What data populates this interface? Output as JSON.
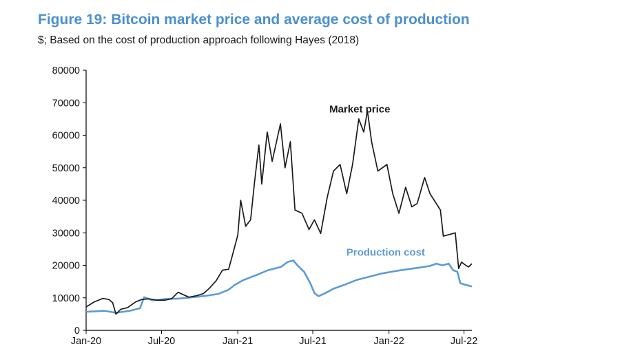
{
  "title": "Figure 19: Bitcoin market price and average cost of production",
  "subtitle": "$; Based on the cost of production approach following Hayes (2018)",
  "colors": {
    "title": "#4a90cf",
    "market_price": "#1a1a1a",
    "production_cost": "#5b9bd5",
    "axis": "#000000"
  },
  "chart_data": {
    "type": "line",
    "title": "Figure 19: Bitcoin market price and average cost of production",
    "subtitle": "$; Based on the cost of production approach following Hayes (2018)",
    "xlabel": "",
    "ylabel": "",
    "ylim": [
      0,
      80000
    ],
    "xlim": [
      "2020-01-01",
      "2022-07-20"
    ],
    "grid": false,
    "y_ticks": [
      "0",
      "10000",
      "20000",
      "30000",
      "40000",
      "50000",
      "60000",
      "70000",
      "80000"
    ],
    "x_ticks": [
      {
        "label": "Jan-20",
        "date": "2020-01-01"
      },
      {
        "label": "Jul-20",
        "date": "2020-07-01"
      },
      {
        "label": "Jan-21",
        "date": "2021-01-01"
      },
      {
        "label": "Jul-21",
        "date": "2021-07-01"
      },
      {
        "label": "Jan-22",
        "date": "2022-01-01"
      },
      {
        "label": "Jul-22",
        "date": "2022-07-01"
      }
    ],
    "series": [
      {
        "name": "Market price",
        "color": "#1a1a1a",
        "points": [
          [
            "2020-01-01",
            7200
          ],
          [
            "2020-01-20",
            8700
          ],
          [
            "2020-02-10",
            9800
          ],
          [
            "2020-02-25",
            9500
          ],
          [
            "2020-03-05",
            8500
          ],
          [
            "2020-03-13",
            5000
          ],
          [
            "2020-03-25",
            6500
          ],
          [
            "2020-04-10",
            7000
          ],
          [
            "2020-04-30",
            8800
          ],
          [
            "2020-05-15",
            9500
          ],
          [
            "2020-06-01",
            9700
          ],
          [
            "2020-06-20",
            9300
          ],
          [
            "2020-07-10",
            9300
          ],
          [
            "2020-07-25",
            9700
          ],
          [
            "2020-08-10",
            11700
          ],
          [
            "2020-09-05",
            10200
          ],
          [
            "2020-09-25",
            10700
          ],
          [
            "2020-10-10",
            11300
          ],
          [
            "2020-10-25",
            13000
          ],
          [
            "2020-11-10",
            15300
          ],
          [
            "2020-11-25",
            18500
          ],
          [
            "2020-12-10",
            18800
          ],
          [
            "2020-12-20",
            23500
          ],
          [
            "2021-01-01",
            29300
          ],
          [
            "2021-01-08",
            40000
          ],
          [
            "2021-01-20",
            32000
          ],
          [
            "2021-02-01",
            34000
          ],
          [
            "2021-02-10",
            45000
          ],
          [
            "2021-02-21",
            57000
          ],
          [
            "2021-02-28",
            45000
          ],
          [
            "2021-03-13",
            61000
          ],
          [
            "2021-03-25",
            52000
          ],
          [
            "2021-04-14",
            63500
          ],
          [
            "2021-04-25",
            50000
          ],
          [
            "2021-05-08",
            58000
          ],
          [
            "2021-05-19",
            37000
          ],
          [
            "2021-06-05",
            36000
          ],
          [
            "2021-06-22",
            31000
          ],
          [
            "2021-07-05",
            34000
          ],
          [
            "2021-07-20",
            29800
          ],
          [
            "2021-08-05",
            41000
          ],
          [
            "2021-08-20",
            49000
          ],
          [
            "2021-09-05",
            51000
          ],
          [
            "2021-09-21",
            42000
          ],
          [
            "2021-10-05",
            51000
          ],
          [
            "2021-10-20",
            65000
          ],
          [
            "2021-11-01",
            61000
          ],
          [
            "2021-11-10",
            67500
          ],
          [
            "2021-11-20",
            58000
          ],
          [
            "2021-12-05",
            49000
          ],
          [
            "2021-12-27",
            51000
          ],
          [
            "2022-01-10",
            42000
          ],
          [
            "2022-01-25",
            36000
          ],
          [
            "2022-02-10",
            44000
          ],
          [
            "2022-02-25",
            38000
          ],
          [
            "2022-03-10",
            39000
          ],
          [
            "2022-03-28",
            47000
          ],
          [
            "2022-04-10",
            42000
          ],
          [
            "2022-04-25",
            39000
          ],
          [
            "2022-05-05",
            37000
          ],
          [
            "2022-05-12",
            29000
          ],
          [
            "2022-05-28",
            29500
          ],
          [
            "2022-06-10",
            30000
          ],
          [
            "2022-06-18",
            19000
          ],
          [
            "2022-06-25",
            21000
          ],
          [
            "2022-07-05",
            20000
          ],
          [
            "2022-07-12",
            19500
          ],
          [
            "2022-07-20",
            20500
          ]
        ]
      },
      {
        "name": "Production cost",
        "color": "#5b9bd5",
        "points": [
          [
            "2020-01-01",
            5700
          ],
          [
            "2020-02-15",
            6000
          ],
          [
            "2020-03-13",
            5400
          ],
          [
            "2020-04-15",
            6000
          ],
          [
            "2020-05-10",
            6800
          ],
          [
            "2020-05-20",
            10200
          ],
          [
            "2020-06-10",
            9200
          ],
          [
            "2020-07-10",
            9600
          ],
          [
            "2020-08-15",
            9800
          ],
          [
            "2020-09-15",
            10200
          ],
          [
            "2020-10-15",
            10600
          ],
          [
            "2020-11-15",
            11200
          ],
          [
            "2020-12-10",
            12500
          ],
          [
            "2020-12-25",
            14000
          ],
          [
            "2021-01-15",
            15500
          ],
          [
            "2021-02-15",
            17000
          ],
          [
            "2021-03-15",
            18500
          ],
          [
            "2021-04-15",
            19500
          ],
          [
            "2021-05-01",
            21000
          ],
          [
            "2021-05-15",
            21500
          ],
          [
            "2021-05-25",
            20000
          ],
          [
            "2021-06-10",
            18000
          ],
          [
            "2021-06-25",
            14500
          ],
          [
            "2021-07-05",
            11500
          ],
          [
            "2021-07-15",
            10500
          ],
          [
            "2021-08-01",
            11500
          ],
          [
            "2021-08-20",
            12800
          ],
          [
            "2021-09-15",
            14000
          ],
          [
            "2021-10-15",
            15500
          ],
          [
            "2021-11-15",
            16500
          ],
          [
            "2021-12-15",
            17500
          ],
          [
            "2022-01-15",
            18200
          ],
          [
            "2022-02-15",
            18800
          ],
          [
            "2022-03-15",
            19300
          ],
          [
            "2022-04-10",
            19800
          ],
          [
            "2022-04-25",
            20500
          ],
          [
            "2022-05-10",
            20000
          ],
          [
            "2022-05-25",
            20500
          ],
          [
            "2022-06-05",
            18500
          ],
          [
            "2022-06-15",
            18000
          ],
          [
            "2022-06-22",
            14500
          ],
          [
            "2022-07-05",
            14000
          ],
          [
            "2022-07-20",
            13500
          ]
        ]
      }
    ],
    "annotations": [
      {
        "text": "Market price",
        "series": "Market price",
        "date": "2021-08-10",
        "value": 67000,
        "color": "#1a1a1a"
      },
      {
        "text": "Production cost",
        "series": "Production cost",
        "date": "2021-09-20",
        "value": 23000,
        "color": "#5b9bd5"
      }
    ]
  }
}
